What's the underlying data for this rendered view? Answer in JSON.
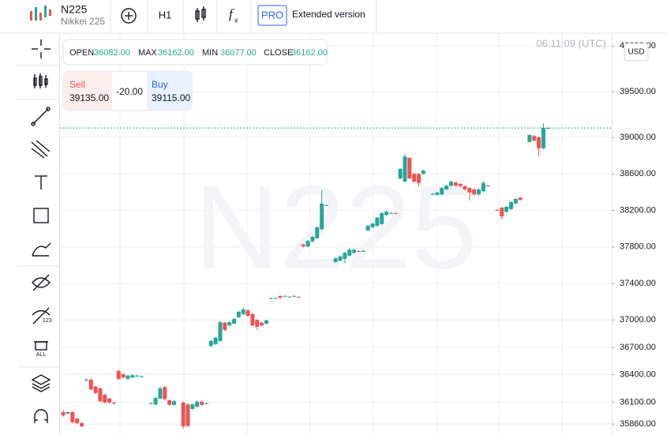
{
  "toolbar": {
    "symbol": "N225",
    "symbol_name": "Nikkei 225",
    "timeframe": "H1",
    "pro": "PRO",
    "extended": "Extended version"
  },
  "ohlc": {
    "open_label": "OPEN",
    "open": "36082.00",
    "max_label": "MAX",
    "max": "36162.00",
    "min_label": "MIN",
    "min": "36077.00",
    "close_label": "CLOSE",
    "close": "36162.00"
  },
  "trade": {
    "sell_label": "Sell",
    "sell": "39135.00",
    "spread": "-20.00",
    "buy_label": "Buy",
    "buy": "39115.00"
  },
  "chart_data": {
    "type": "candlestick",
    "watermark": "N225",
    "time": "06:11:09 (UTC)",
    "currency": "USD",
    "up_color": "#26a69a",
    "down_color": "#ef5350",
    "grid": true,
    "xlim": [
      -0.7,
      118.8
    ],
    "ylim": [
      35740,
      40115
    ],
    "yticks": [
      {
        "value": 35860,
        "label": "35860.00"
      },
      {
        "value": 36100,
        "label": "36100.00"
      },
      {
        "value": 36400,
        "label": "36400.00"
      },
      {
        "value": 36700,
        "label": "36700.00"
      },
      {
        "value": 37000,
        "label": "37000.00"
      },
      {
        "value": 37400,
        "label": "37400.00"
      },
      {
        "value": 37800,
        "label": "37800.00"
      },
      {
        "value": 38200,
        "label": "38200.00"
      },
      {
        "value": 38600,
        "label": "38600.00"
      },
      {
        "value": 39000,
        "label": "39000.00"
      },
      {
        "value": 39500,
        "label": "39500.00"
      },
      {
        "value": 40000,
        "label": "40000.00"
      }
    ],
    "x": [
      0,
      1,
      2,
      3,
      4,
      5,
      6,
      7,
      8,
      9,
      10,
      11,
      12,
      13,
      14,
      15,
      16,
      17,
      19,
      20,
      21,
      22,
      23,
      24,
      26,
      27,
      28,
      29,
      30,
      31,
      32,
      33,
      34,
      35,
      36,
      37,
      38,
      39,
      40,
      41,
      42,
      43,
      44,
      45,
      46,
      47,
      48,
      49,
      50,
      51,
      52,
      53,
      54,
      55,
      56,
      57,
      59,
      60,
      61,
      62,
      63,
      64,
      65,
      66,
      67,
      68,
      69,
      70,
      71,
      72,
      73,
      74,
      75,
      76,
      77,
      78,
      80,
      81,
      82,
      83,
      84,
      85,
      86,
      87,
      88,
      89,
      90,
      91,
      92,
      94,
      95,
      96,
      97,
      98,
      99,
      101,
      102,
      103,
      104,
      105
    ],
    "open": [
      35990,
      35975,
      35990,
      35920,
      35870,
      36340,
      36345,
      36270,
      36250,
      36180,
      36140,
      36095,
      36440,
      36405,
      36355,
      36370,
      36385,
      36380,
      36085,
      36075,
      36140,
      36265,
      36120,
      36070,
      36095,
      36075,
      36025,
      36050,
      36105,
      36085,
      36715,
      36735,
      36770,
      36970,
      36940,
      36960,
      37030,
      37065,
      37105,
      37065,
      37000,
      36970,
      36960,
      37235,
      37236,
      37262,
      37262,
      37253,
      37262,
      37253,
      37825,
      37805,
      37860,
      37895,
      37995,
      38255,
      37635,
      37650,
      37670,
      37705,
      37735,
      37755,
      37754,
      37980,
      38015,
      38030,
      38050,
      38150,
      38170,
      38170,
      38550,
      38515,
      38775,
      38600,
      38600,
      38600,
      38377,
      38370,
      38375,
      38430,
      38470,
      38505,
      38490,
      38465,
      38445,
      38430,
      38375,
      38410,
      38472,
      38205,
      38230,
      38185,
      38215,
      38275,
      38340,
      38950,
      39015,
      39000,
      38880,
      39100
    ],
    "high": [
      36015,
      36000,
      36000,
      35930,
      35880,
      36360,
      36360,
      36280,
      36260,
      36190,
      36150,
      36100,
      36460,
      36420,
      36400,
      36405,
      36400,
      36390,
      36095,
      36160,
      36270,
      36275,
      36130,
      36120,
      36110,
      36085,
      36085,
      36115,
      36115,
      36095,
      36780,
      36815,
      36990,
      36980,
      36985,
      37020,
      37100,
      37140,
      37115,
      37075,
      37010,
      36980,
      37005,
      37245,
      37245,
      37270,
      37270,
      37260,
      37270,
      37260,
      37835,
      37875,
      37920,
      38025,
      38420,
      38265,
      37685,
      37705,
      37745,
      37790,
      37780,
      37765,
      37765,
      38040,
      38065,
      38130,
      38180,
      38195,
      38180,
      38180,
      38665,
      38820,
      38785,
      38610,
      38610,
      38645,
      38390,
      38405,
      38455,
      38480,
      38525,
      38515,
      38500,
      38475,
      38455,
      38440,
      38440,
      38525,
      38480,
      38215,
      38240,
      38250,
      38300,
      38335,
      38345,
      39035,
      39025,
      39010,
      39155,
      39110
    ],
    "low": [
      35940,
      35965,
      35870,
      35860,
      35830,
      36330,
      36230,
      36190,
      36100,
      36085,
      36085,
      36075,
      36345,
      36360,
      36340,
      36360,
      36375,
      36375,
      36075,
      36065,
      36130,
      36120,
      36060,
      36060,
      35810,
      35820,
      36015,
      36040,
      36060,
      36080,
      36705,
      36725,
      36760,
      36880,
      36930,
      36950,
      37020,
      37055,
      37035,
      36930,
      36890,
      36930,
      36950,
      37230,
      37230,
      37235,
      37255,
      37245,
      37255,
      37245,
      37795,
      37795,
      37850,
      37885,
      37985,
      38250,
      37625,
      37640,
      37620,
      37695,
      37725,
      37745,
      37745,
      37970,
      38005,
      38020,
      38040,
      38140,
      38160,
      38160,
      38540,
      38505,
      38540,
      38505,
      38460,
      38590,
      38370,
      38360,
      38365,
      38420,
      38460,
      38460,
      38455,
      38420,
      38310,
      38365,
      38365,
      38400,
      38460,
      38195,
      38100,
      38175,
      38205,
      38265,
      38310,
      38940,
      38955,
      38790,
      38870,
      39090
    ],
    "close": [
      35955,
      35990,
      35880,
      35870,
      35835,
      36345,
      36240,
      36200,
      36110,
      36095,
      36095,
      36085,
      36355,
      36370,
      36390,
      36395,
      36390,
      36382,
      36087,
      36145,
      36250,
      36135,
      36070,
      36110,
      35835,
      35840,
      36075,
      36105,
      36070,
      36087,
      36770,
      36805,
      36975,
      36890,
      36975,
      37010,
      37090,
      37115,
      37045,
      36940,
      36925,
      36940,
      36995,
      37238,
      37240,
      37244,
      37264,
      37255,
      37264,
      37252,
      37805,
      37865,
      37910,
      38015,
      38275,
      38257,
      37675,
      37695,
      37735,
      37770,
      37770,
      37752,
      37756,
      38030,
      38055,
      38120,
      38170,
      38185,
      38172,
      38168,
      38655,
      38790,
      38550,
      38515,
      38500,
      38635,
      38379,
      38395,
      38445,
      38470,
      38515,
      38470,
      38465,
      38430,
      38395,
      38375,
      38430,
      38500,
      38470,
      38203,
      38135,
      38240,
      38290,
      38325,
      38315,
      39025,
      38965,
      38880,
      39105,
      39102
    ]
  }
}
